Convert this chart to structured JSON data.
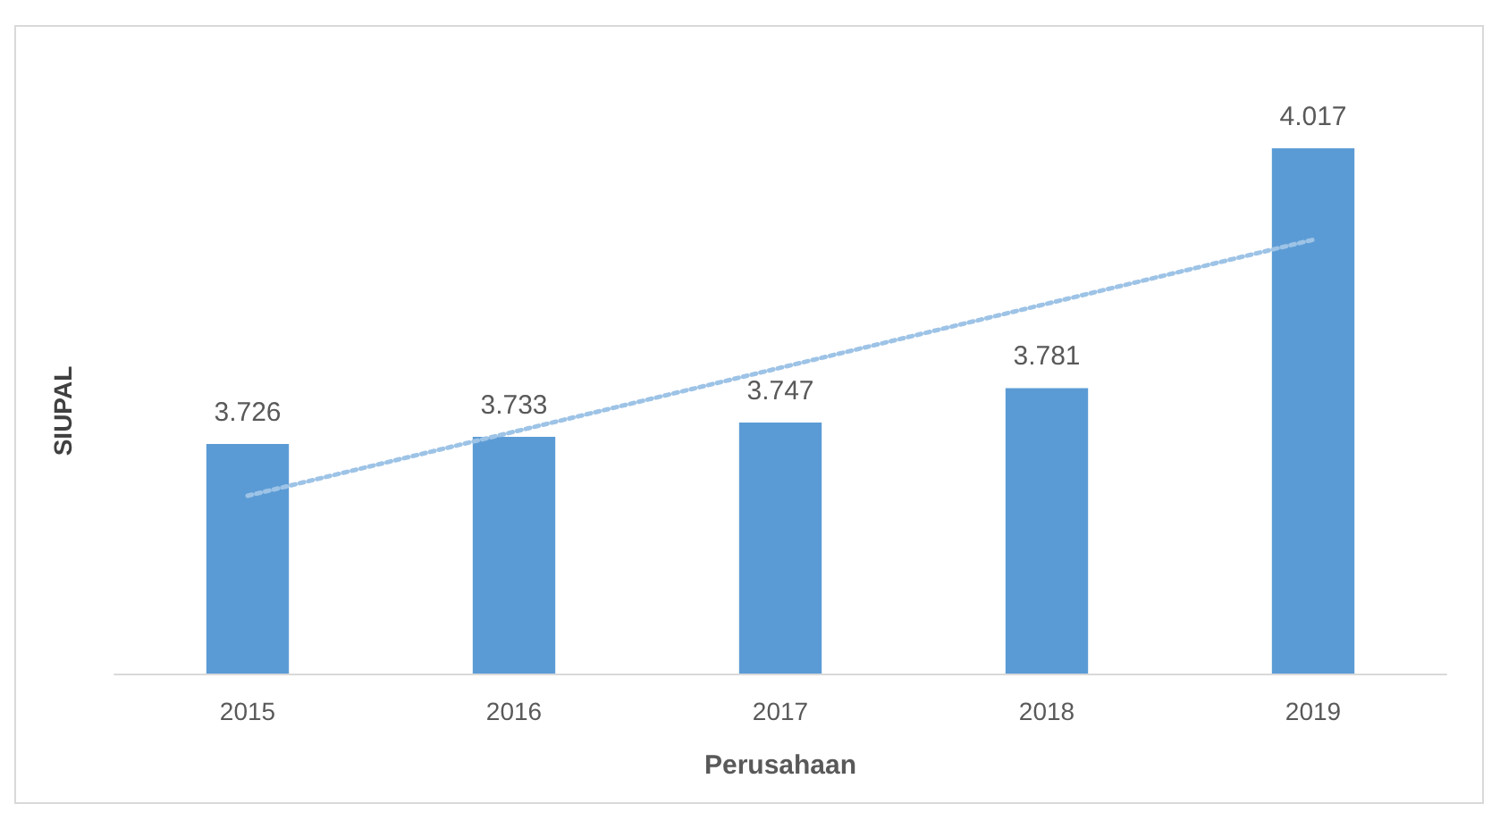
{
  "chart_data": {
    "type": "bar",
    "xlabel": "Perusahaan",
    "ylabel": "SIUPAL",
    "categories": [
      "2015",
      "2016",
      "2017",
      "2018",
      "2019"
    ],
    "ylim": [
      3500,
      4017
    ],
    "tick_labels": "x",
    "grid": false,
    "series": [
      {
        "color": "#5b9bd5",
        "values": [
          3726,
          3733,
          3747,
          3781,
          4017
        ],
        "value_labels": [
          "3.726",
          "3.733",
          "3.747",
          "3.781",
          "4.017"
        ]
      },
      {
        "type": "line",
        "color": "#9dc3e6",
        "values": [
          3675,
          3738,
          3801,
          3864,
          3927
        ],
        "line_style": "dotted",
        "marker": "none"
      }
    ]
  }
}
